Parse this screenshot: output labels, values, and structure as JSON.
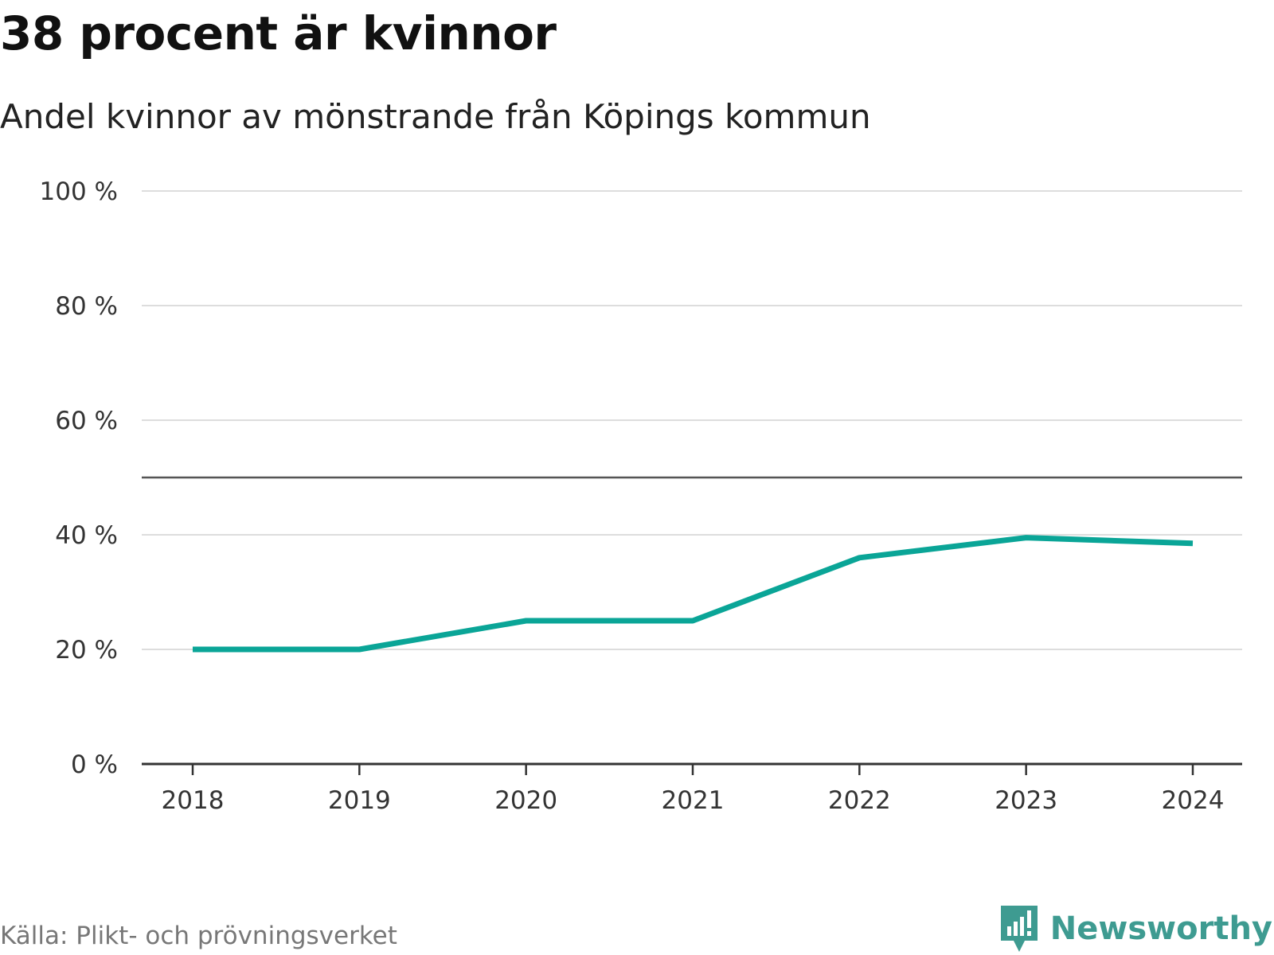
{
  "header": {
    "title": "38 procent är kvinnor",
    "subtitle": "Andel kvinnor av mönstrande från Köpings kommun"
  },
  "footer": {
    "source": "Källa: Plikt- och prövningsverket",
    "brand": "Newsworthy"
  },
  "colors": {
    "line": "#0aa597",
    "grid": "#dddddd",
    "axis": "#333333",
    "reference": "#555555",
    "brand": "#3e9b91"
  },
  "chart_data": {
    "type": "line",
    "title": "38 procent är kvinnor",
    "subtitle": "Andel kvinnor av mönstrande från Köpings kommun",
    "xlabel": "",
    "ylabel": "",
    "categories": [
      "2018",
      "2019",
      "2020",
      "2021",
      "2022",
      "2023",
      "2024"
    ],
    "series": [
      {
        "name": "Andel kvinnor",
        "values": [
          20,
          20,
          25,
          25,
          36,
          39.5,
          38.5
        ]
      }
    ],
    "ylim": [
      0,
      100
    ],
    "yticks": [
      0,
      20,
      40,
      60,
      80,
      100
    ],
    "ytick_labels": [
      "0 %",
      "20 %",
      "40 %",
      "60 %",
      "80 %",
      "100 %"
    ],
    "reference_line": 50,
    "grid": true,
    "legend": "none"
  }
}
